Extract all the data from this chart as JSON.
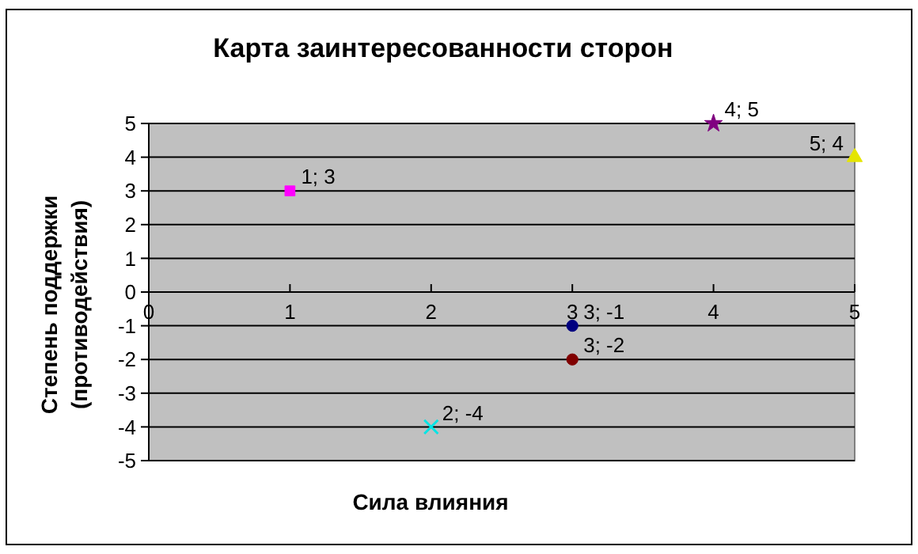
{
  "chart_data": {
    "type": "scatter",
    "title": "Карта заинтересованности сторон",
    "xlabel": "Сила влияния",
    "ylabel": "Степень поддержки (противодействия)",
    "xlim": [
      0,
      5
    ],
    "xticks": [
      0,
      1,
      2,
      3,
      4,
      5
    ],
    "ylim": [
      -5,
      5
    ],
    "yticks": [
      -5,
      -4,
      -3,
      -2,
      -1,
      0,
      1,
      2,
      3,
      4,
      5
    ],
    "grid": "y",
    "series": [
      {
        "color": "#ff00ff",
        "marker": "square",
        "x": [
          1
        ],
        "values": [
          3
        ],
        "value_labels": [
          "1; 3"
        ]
      },
      {
        "color": "#00e5e5",
        "marker": "cross",
        "x": [
          2
        ],
        "values": [
          -4
        ],
        "value_labels": [
          "2; -4"
        ]
      },
      {
        "color": "#000080",
        "marker": "circle",
        "x": [
          3
        ],
        "values": [
          -1
        ],
        "value_labels": [
          "3; -1"
        ]
      },
      {
        "color": "#800000",
        "marker": "circle",
        "x": [
          3
        ],
        "values": [
          -2
        ],
        "value_labels": [
          "3; -2"
        ]
      },
      {
        "color": "#800080",
        "marker": "star",
        "x": [
          4
        ],
        "values": [
          5
        ],
        "value_labels": [
          "4; 5"
        ]
      },
      {
        "color": "#e5e500",
        "marker": "triangle",
        "x": [
          5
        ],
        "values": [
          4
        ],
        "value_labels": [
          "5; 4"
        ]
      }
    ]
  }
}
